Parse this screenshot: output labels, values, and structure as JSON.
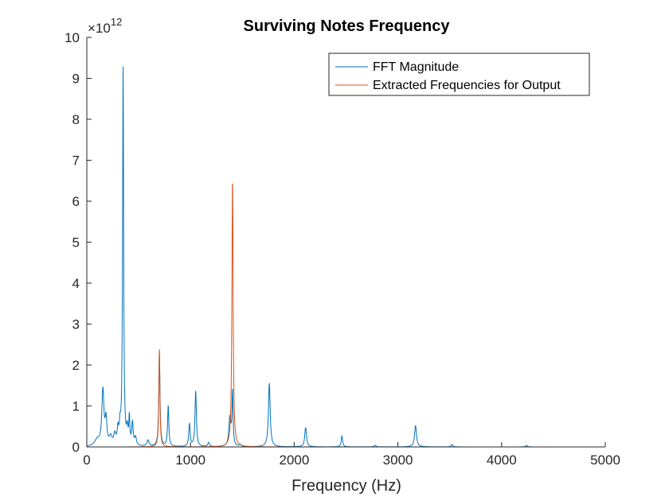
{
  "chart_data": {
    "type": "line",
    "title": "Surviving Notes Frequency",
    "xlabel": "Frequency (Hz)",
    "ylabel": "",
    "xlim": [
      0,
      5000
    ],
    "ylim": [
      0,
      10
    ],
    "y_exponent_label": "×10",
    "y_exponent": "12",
    "x_ticks": [
      {
        "value": 0,
        "label": "0"
      },
      {
        "value": 1000,
        "label": "1000"
      },
      {
        "value": 2000,
        "label": "2000"
      },
      {
        "value": 3000,
        "label": "3000"
      },
      {
        "value": 4000,
        "label": "4000"
      },
      {
        "value": 5000,
        "label": "5000"
      }
    ],
    "y_ticks": [
      {
        "value": 0,
        "label": "0"
      },
      {
        "value": 1,
        "label": "1"
      },
      {
        "value": 2,
        "label": "2"
      },
      {
        "value": 3,
        "label": "3"
      },
      {
        "value": 4,
        "label": "4"
      },
      {
        "value": 5,
        "label": "5"
      },
      {
        "value": 6,
        "label": "6"
      },
      {
        "value": 7,
        "label": "7"
      },
      {
        "value": 8,
        "label": "8"
      },
      {
        "value": 9,
        "label": "9"
      },
      {
        "value": 10,
        "label": "10"
      }
    ],
    "grid": false,
    "legend_position": "top-right",
    "series": [
      {
        "name": "FFT Magnitude",
        "color": "#0072BD",
        "peaks": [
          {
            "x": 100,
            "y": 0.15,
            "w": 30
          },
          {
            "x": 155,
            "y": 1.35,
            "w": 12
          },
          {
            "x": 185,
            "y": 0.6,
            "w": 10
          },
          {
            "x": 230,
            "y": 0.2,
            "w": 15
          },
          {
            "x": 270,
            "y": 0.25,
            "w": 12
          },
          {
            "x": 300,
            "y": 0.35,
            "w": 8
          },
          {
            "x": 320,
            "y": 0.4,
            "w": 8
          },
          {
            "x": 350,
            "y": 9.2,
            "w": 6
          },
          {
            "x": 390,
            "y": 0.35,
            "w": 8
          },
          {
            "x": 410,
            "y": 0.65,
            "w": 6
          },
          {
            "x": 440,
            "y": 0.55,
            "w": 8
          },
          {
            "x": 470,
            "y": 0.2,
            "w": 10
          },
          {
            "x": 590,
            "y": 0.15,
            "w": 12
          },
          {
            "x": 700,
            "y": 2.3,
            "w": 7
          },
          {
            "x": 785,
            "y": 1.0,
            "w": 7
          },
          {
            "x": 990,
            "y": 0.55,
            "w": 8
          },
          {
            "x": 1050,
            "y": 1.35,
            "w": 8
          },
          {
            "x": 1175,
            "y": 0.1,
            "w": 10
          },
          {
            "x": 1380,
            "y": 0.7,
            "w": 12
          },
          {
            "x": 1405,
            "y": 1.3,
            "w": 6
          },
          {
            "x": 1480,
            "y": 0.05,
            "w": 10
          },
          {
            "x": 1760,
            "y": 1.55,
            "w": 10
          },
          {
            "x": 2110,
            "y": 0.47,
            "w": 10
          },
          {
            "x": 2460,
            "y": 0.27,
            "w": 8
          },
          {
            "x": 2780,
            "y": 0.04,
            "w": 10
          },
          {
            "x": 3170,
            "y": 0.52,
            "w": 11
          },
          {
            "x": 3520,
            "y": 0.06,
            "w": 9
          },
          {
            "x": 4240,
            "y": 0.04,
            "w": 9
          }
        ]
      },
      {
        "name": "Extracted Frequencies for Output",
        "color": "#D95319",
        "peaks": [
          {
            "x": 700,
            "y": 2.38,
            "w": 6
          },
          {
            "x": 1405,
            "y": 6.55,
            "w": 7
          }
        ]
      }
    ]
  }
}
